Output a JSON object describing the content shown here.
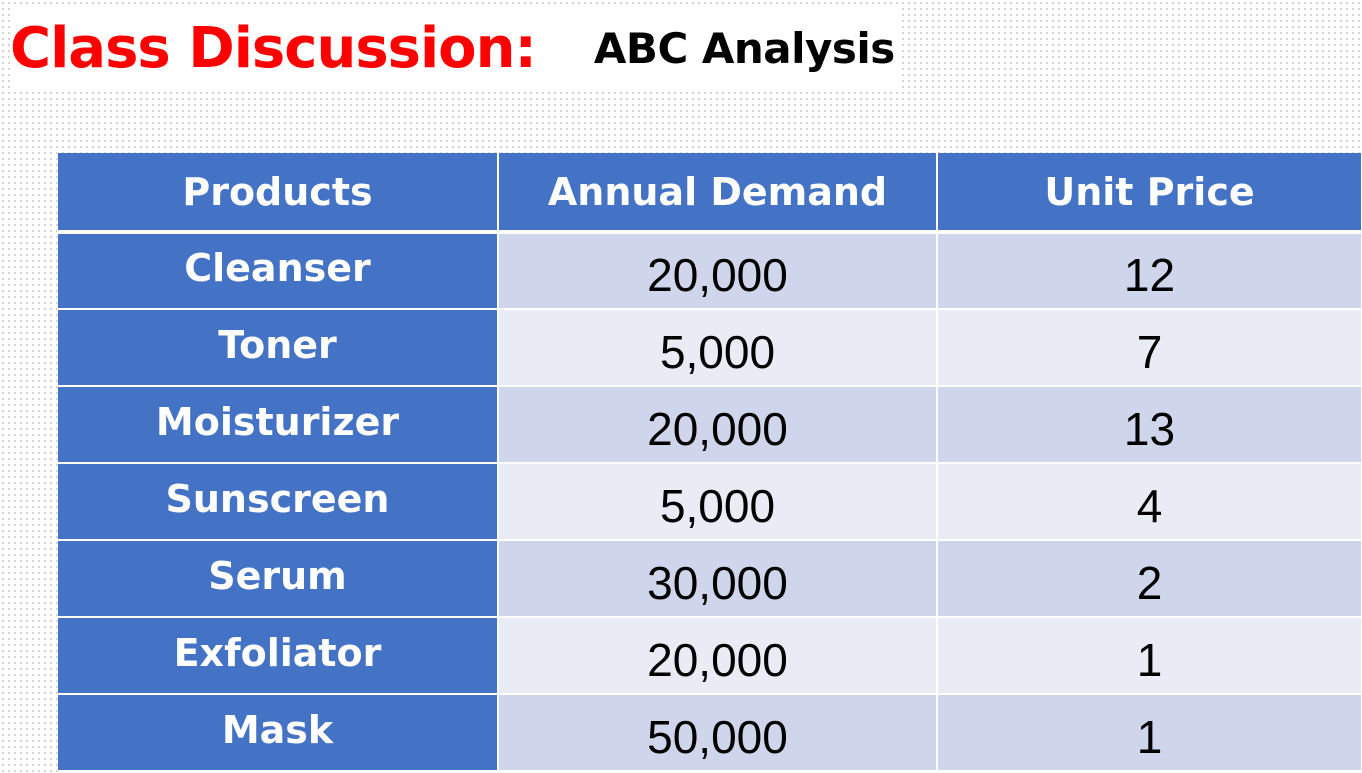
{
  "title": {
    "main": "Class Discussion:",
    "sub": "ABC Analysis"
  },
  "table": {
    "headers": [
      "Products",
      "Annual Demand",
      "Unit Price"
    ],
    "rows": [
      {
        "product": "Cleanser",
        "demand": "20,000",
        "price": "12"
      },
      {
        "product": "Toner",
        "demand": "5,000",
        "price": "7"
      },
      {
        "product": "Moisturizer",
        "demand": "20,000",
        "price": "13"
      },
      {
        "product": "Sunscreen",
        "demand": "5,000",
        "price": "4"
      },
      {
        "product": "Serum",
        "demand": "30,000",
        "price": "2"
      },
      {
        "product": "Exfoliator",
        "demand": "20,000",
        "price": "1"
      },
      {
        "product": "Mask",
        "demand": "50,000",
        "price": "1"
      }
    ]
  },
  "colors": {
    "title_main": "#ff0000",
    "title_sub": "#000000",
    "header_fill": "#4472c4",
    "band_dark": "#cfd5ea",
    "band_light": "#e9ebf5"
  }
}
